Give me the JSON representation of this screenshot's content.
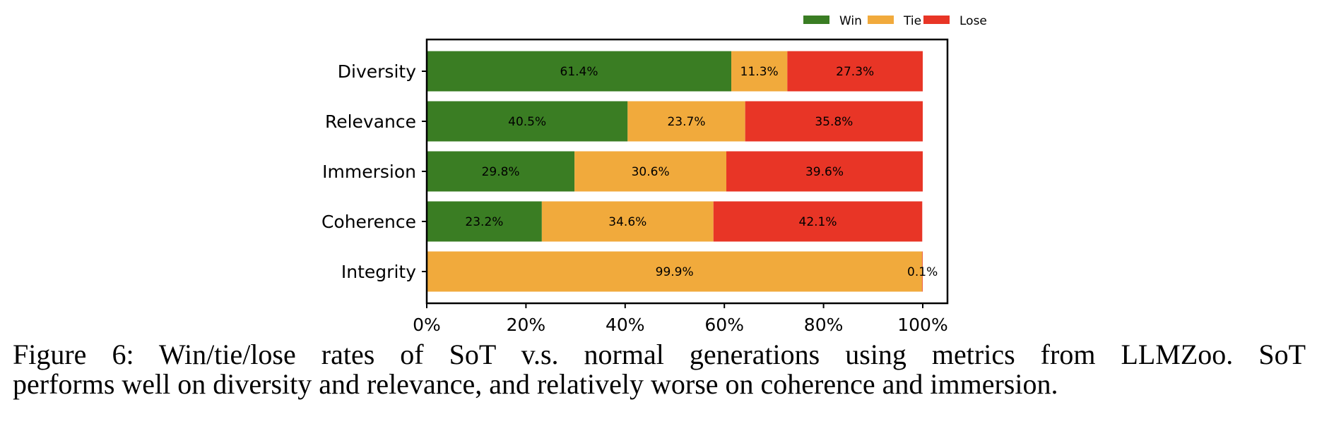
{
  "chart_data": {
    "type": "bar",
    "orientation": "horizontal",
    "stacked": true,
    "categories": [
      "Diversity",
      "Relevance",
      "Immersion",
      "Coherence",
      "Integrity"
    ],
    "series": [
      {
        "name": "Win",
        "color": "#3a7d23",
        "values": [
          61.4,
          40.5,
          29.8,
          23.2,
          0.0
        ]
      },
      {
        "name": "Tie",
        "color": "#f1aa3c",
        "values": [
          11.3,
          23.7,
          30.6,
          34.6,
          99.9
        ]
      },
      {
        "name": "Lose",
        "color": "#e83526",
        "values": [
          27.3,
          35.8,
          39.6,
          42.1,
          0.1
        ]
      }
    ],
    "bar_labels": [
      [
        "61.4%",
        "11.3%",
        "27.3%"
      ],
      [
        "40.5%",
        "23.7%",
        "35.8%"
      ],
      [
        "29.8%",
        "30.6%",
        "39.6%"
      ],
      [
        "23.2%",
        "34.6%",
        "42.1%"
      ],
      [
        "",
        "99.9%",
        "0.1%"
      ]
    ],
    "title": "",
    "xlabel": "",
    "ylabel": "",
    "xlim": [
      0,
      100
    ],
    "xticks": [
      0,
      20,
      40,
      60,
      80,
      100
    ],
    "xtick_labels": [
      "0%",
      "20%",
      "40%",
      "60%",
      "80%",
      "100%"
    ],
    "grid": false,
    "legend": {
      "placement": "top-right-above",
      "entries": [
        "Win",
        "Tie",
        "Lose"
      ]
    }
  },
  "caption": {
    "line1": "Figure 6:  Win/tie/lose rates of SoT v.s.  normal generations using metrics from LLMZoo.  SoT",
    "line2": "performs well on diversity and relevance, and relatively worse on coherence and immersion."
  }
}
